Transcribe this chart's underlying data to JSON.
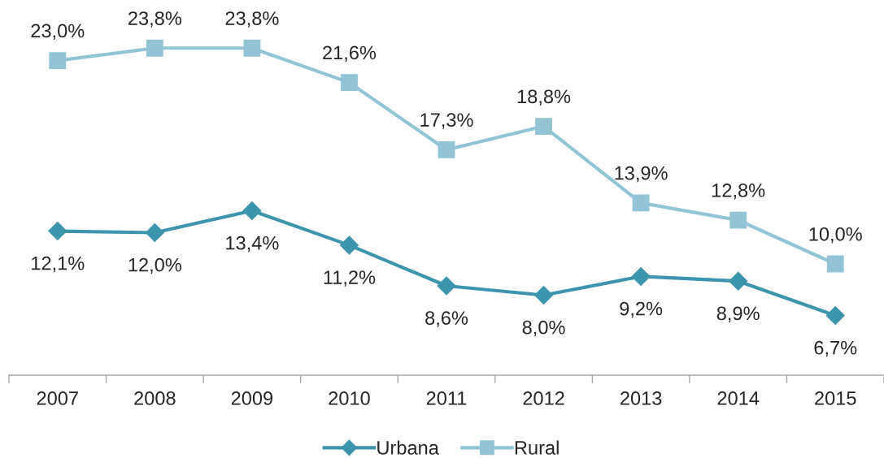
{
  "chart_data": {
    "type": "line",
    "categories": [
      "2007",
      "2008",
      "2009",
      "2010",
      "2011",
      "2012",
      "2013",
      "2014",
      "2015"
    ],
    "series": [
      {
        "name": "Urbana",
        "color": "#3d94ad",
        "marker": "diamond",
        "values": [
          12.1,
          12.0,
          13.4,
          11.2,
          8.6,
          8.0,
          9.2,
          8.9,
          6.7
        ],
        "value_labels": [
          "12,1%",
          "12,0%",
          "13,4%",
          "11,2%",
          "8,6%",
          "8,0%",
          "9,2%",
          "8,9%",
          "6,7%"
        ]
      },
      {
        "name": "Rural",
        "color": "#93c4d6",
        "marker": "square",
        "values": [
          23.0,
          23.8,
          23.8,
          21.6,
          17.3,
          18.8,
          13.9,
          12.8,
          10.0
        ],
        "value_labels": [
          "23,0%",
          "23,8%",
          "23,8%",
          "21,6%",
          "17,3%",
          "18,8%",
          "13,9%",
          "12,8%",
          "10,0%"
        ]
      }
    ],
    "tick_labels": "x",
    "legend": "bottom",
    "line_style": "solid"
  }
}
